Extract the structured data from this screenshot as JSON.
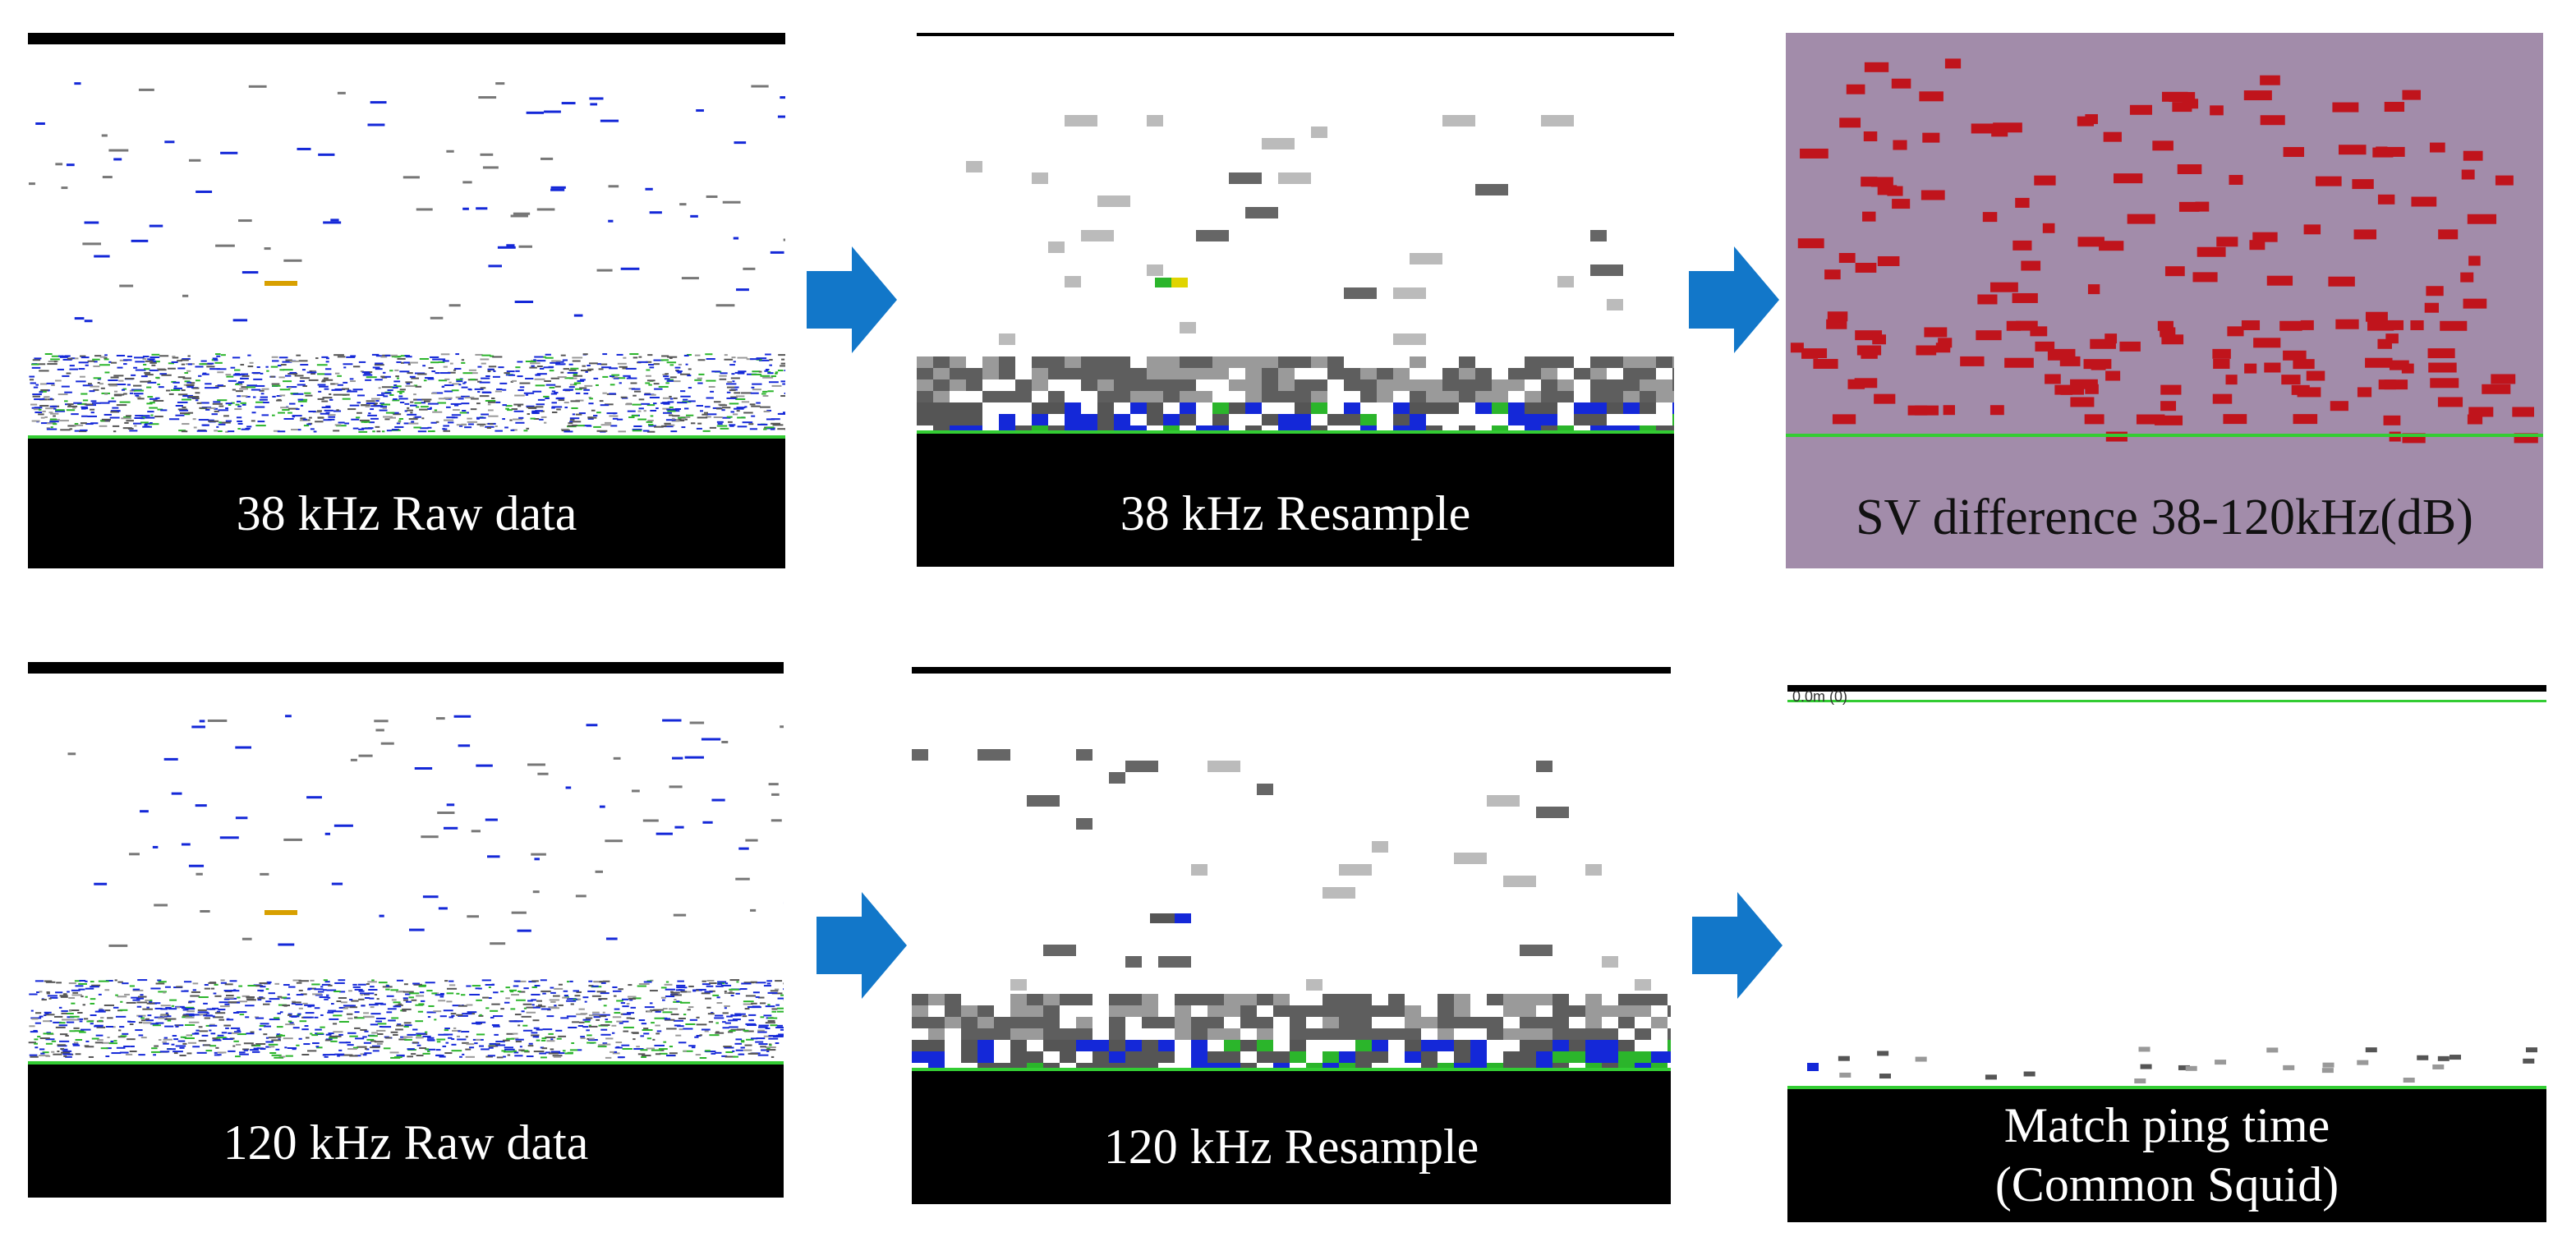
{
  "panels": {
    "raw38": {
      "caption": "38 kHz Raw data"
    },
    "res38": {
      "caption": "38 kHz Resample"
    },
    "svdiff": {
      "caption": "SV difference 38-120kHz(dB)"
    },
    "raw120": {
      "caption": "120 kHz Raw data"
    },
    "res120": {
      "caption": "120 kHz Resample"
    },
    "match": {
      "caption_line1": "Match ping time",
      "caption_line2": "(Common Squid)",
      "scale_label": "0.0m (0)"
    }
  },
  "colors": {
    "arrow": "#1277c9",
    "bottom": "#000000",
    "seabed_line": "#33cc33",
    "echo_blue": "#1428d8",
    "echo_green": "#2bb52b",
    "echo_grey": "#9a9a9a",
    "echo_dark_grey": "#5e5e5e",
    "diff_background": "#a28caa",
    "diff_red": "#c0141c"
  },
  "icons": {
    "flow_arrow": "right-arrow-icon"
  }
}
